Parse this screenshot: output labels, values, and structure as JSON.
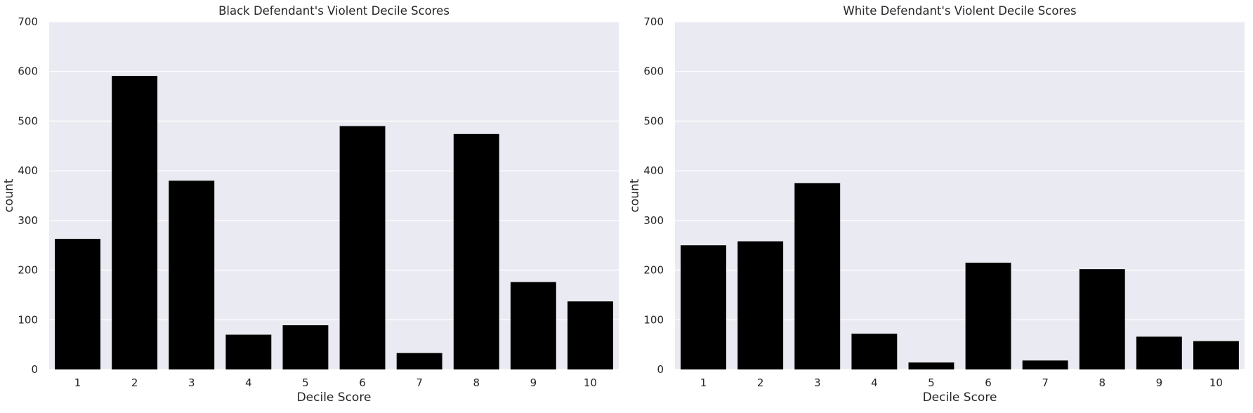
{
  "chart_data": [
    {
      "type": "bar",
      "title": "Black Defendant's Violent Decile Scores",
      "xlabel": "Decile Score",
      "ylabel": "count",
      "categories": [
        "1",
        "2",
        "3",
        "4",
        "5",
        "6",
        "7",
        "8",
        "9",
        "10"
      ],
      "values": [
        263,
        591,
        380,
        70,
        89,
        490,
        33,
        474,
        176,
        137
      ],
      "ylim": [
        0,
        700
      ],
      "yticks": [
        "0",
        "100",
        "200",
        "300",
        "400",
        "500",
        "600",
        "700"
      ],
      "grid": true,
      "bar_color": "#000000",
      "background_color": "#EAEAF2",
      "grid_color": "#FFFFFF"
    },
    {
      "type": "bar",
      "title": "White Defendant's Violent Decile Scores",
      "xlabel": "Decile Score",
      "ylabel": "count",
      "categories": [
        "1",
        "2",
        "3",
        "4",
        "5",
        "6",
        "7",
        "8",
        "9",
        "10"
      ],
      "values": [
        250,
        258,
        375,
        72,
        14,
        215,
        18,
        202,
        66,
        57
      ],
      "ylim": [
        0,
        700
      ],
      "yticks": [
        "0",
        "100",
        "200",
        "300",
        "400",
        "500",
        "600",
        "700"
      ],
      "grid": true,
      "bar_color": "#000000",
      "background_color": "#EAEAF2",
      "grid_color": "#FFFFFF"
    }
  ]
}
